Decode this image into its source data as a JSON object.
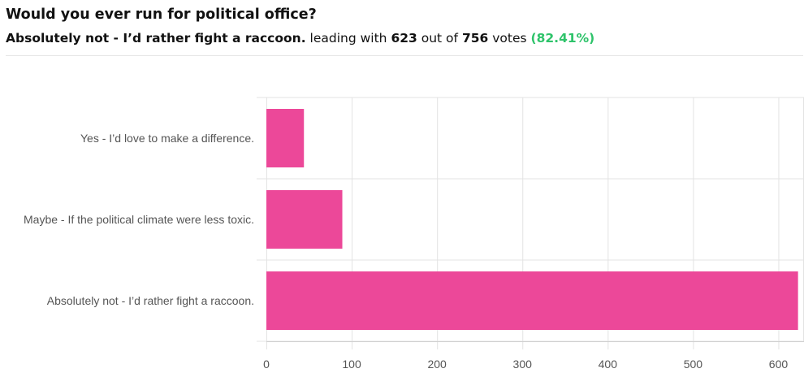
{
  "poll": {
    "question": "Would you ever run for political office?",
    "leader_label": "Absolutely not - I’d rather fight a raccoon.",
    "text_leading_with": "leading with",
    "leader_votes": "623",
    "text_out_of": "out of",
    "total_votes": "756",
    "text_votes": "votes",
    "leader_percent": "(82.41%)"
  },
  "colors": {
    "bar": "#ec4899",
    "percent": "#2ec36a",
    "grid": "#e3e3e3"
  },
  "chart_data": {
    "type": "bar",
    "orientation": "horizontal",
    "categories": [
      "Yes - I’d love to make a difference.",
      "Maybe - If the political climate were less toxic.",
      "Absolutely not - I’d rather fight a raccoon."
    ],
    "values": [
      44,
      89,
      623
    ],
    "xlim": [
      0,
      630
    ],
    "xticks": [
      0,
      100,
      200,
      300,
      400,
      500,
      600
    ],
    "grid": true,
    "legend": "none"
  }
}
